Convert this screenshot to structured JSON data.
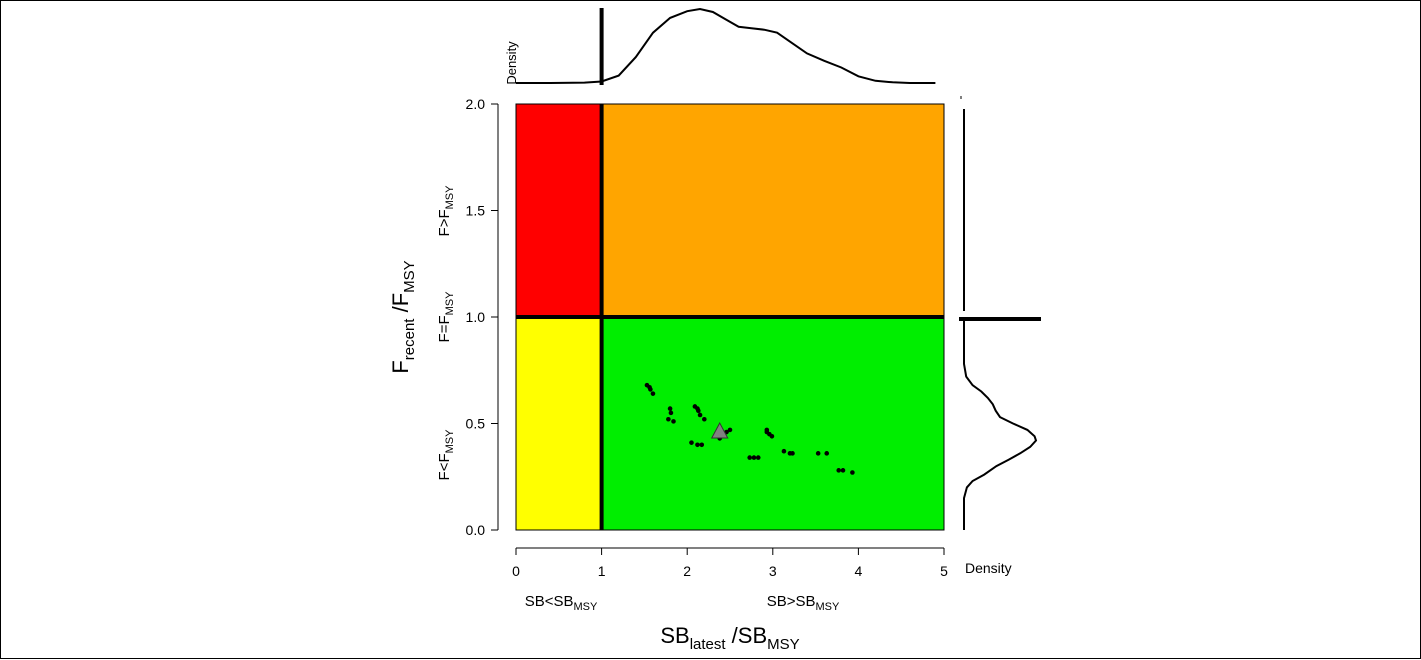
{
  "chart_data": {
    "type": "scatter",
    "title": "",
    "xlabel": {
      "main": "SB",
      "sub": "latest",
      "rest": " /SB",
      "rest_sub": "MSY"
    },
    "ylabel": {
      "main": "F",
      "sub": "recent",
      "rest": " /F",
      "rest_sub": "MSY"
    },
    "xlim": [
      0,
      5
    ],
    "ylim": [
      0,
      2
    ],
    "x_ticks": [
      "0",
      "1",
      "2",
      "3",
      "4",
      "5"
    ],
    "y_ticks": [
      "0.0",
      "0.5",
      "1.0",
      "1.5",
      "2.0"
    ],
    "reference_lines": {
      "sb_ratio": 1,
      "f_ratio": 1
    },
    "quadrants": [
      {
        "name": "overfished-overfishing",
        "x": [
          0,
          1
        ],
        "y": [
          1,
          2
        ],
        "color": "#ff0000"
      },
      {
        "name": "not-overfished-overfishing",
        "x": [
          1,
          5
        ],
        "y": [
          1,
          2
        ],
        "color": "#ffa500"
      },
      {
        "name": "overfished-no-overfishing",
        "x": [
          0,
          1
        ],
        "y": [
          0,
          1
        ],
        "color": "#ffff00"
      },
      {
        "name": "not-overfished-no-overfishing",
        "x": [
          1,
          5
        ],
        "y": [
          0,
          1
        ],
        "color": "#00ee00"
      }
    ],
    "region_labels": {
      "y_upper": {
        "main": "F>F",
        "sub": "MSY"
      },
      "y_mid": {
        "main": "F=F",
        "sub": "MSY"
      },
      "y_lower": {
        "main": "F<F",
        "sub": "MSY"
      },
      "x_left": {
        "main": "SB<SB",
        "sub": "MSY"
      },
      "x_right": {
        "main": "SB>SB",
        "sub": "MSY"
      }
    },
    "points": [
      [
        1.53,
        0.68
      ],
      [
        1.56,
        0.67
      ],
      [
        1.57,
        0.66
      ],
      [
        1.6,
        0.64
      ],
      [
        1.8,
        0.57
      ],
      [
        1.81,
        0.55
      ],
      [
        1.78,
        0.52
      ],
      [
        1.84,
        0.51
      ],
      [
        2.09,
        0.58
      ],
      [
        2.12,
        0.57
      ],
      [
        2.13,
        0.56
      ],
      [
        2.15,
        0.54
      ],
      [
        2.2,
        0.52
      ],
      [
        2.05,
        0.41
      ],
      [
        2.12,
        0.4
      ],
      [
        2.17,
        0.4
      ],
      [
        2.46,
        0.46
      ],
      [
        2.5,
        0.47
      ],
      [
        2.41,
        0.44
      ],
      [
        2.38,
        0.43
      ],
      [
        2.93,
        0.47
      ],
      [
        2.96,
        0.45
      ],
      [
        2.99,
        0.44
      ],
      [
        2.93,
        0.46
      ],
      [
        3.13,
        0.37
      ],
      [
        3.2,
        0.36
      ],
      [
        3.23,
        0.36
      ],
      [
        2.73,
        0.34
      ],
      [
        2.78,
        0.34
      ],
      [
        2.83,
        0.34
      ],
      [
        3.53,
        0.36
      ],
      [
        3.63,
        0.36
      ],
      [
        3.77,
        0.28
      ],
      [
        3.82,
        0.28
      ],
      [
        3.93,
        0.27
      ]
    ],
    "median": {
      "x": 2.38,
      "y": 0.46,
      "color": "#808080"
    },
    "density_top": {
      "label": "Density",
      "x": [
        0.0,
        0.4,
        0.8,
        1.0,
        1.2,
        1.4,
        1.6,
        1.8,
        2.0,
        2.15,
        2.3,
        2.45,
        2.6,
        2.75,
        2.9,
        3.05,
        3.2,
        3.4,
        3.6,
        3.8,
        4.0,
        4.2,
        4.4,
        4.6,
        4.9
      ],
      "y": [
        0.0,
        0.0,
        0.005,
        0.02,
        0.1,
        0.35,
        0.68,
        0.88,
        0.97,
        1.0,
        0.96,
        0.86,
        0.76,
        0.74,
        0.72,
        0.68,
        0.56,
        0.4,
        0.3,
        0.21,
        0.09,
        0.03,
        0.01,
        0.0,
        0.0
      ]
    },
    "density_right": {
      "label": "Density",
      "y": [
        0.0,
        0.15,
        0.2,
        0.23,
        0.26,
        0.3,
        0.33,
        0.36,
        0.39,
        0.42,
        0.44,
        0.47,
        0.5,
        0.53,
        0.56,
        0.59,
        0.62,
        0.65,
        0.68,
        0.72,
        0.78,
        1.0
      ],
      "d": [
        0.0,
        0.0,
        0.04,
        0.12,
        0.28,
        0.45,
        0.62,
        0.78,
        0.92,
        1.0,
        0.98,
        0.88,
        0.68,
        0.5,
        0.44,
        0.4,
        0.33,
        0.24,
        0.12,
        0.03,
        0.0,
        0.0
      ]
    }
  }
}
